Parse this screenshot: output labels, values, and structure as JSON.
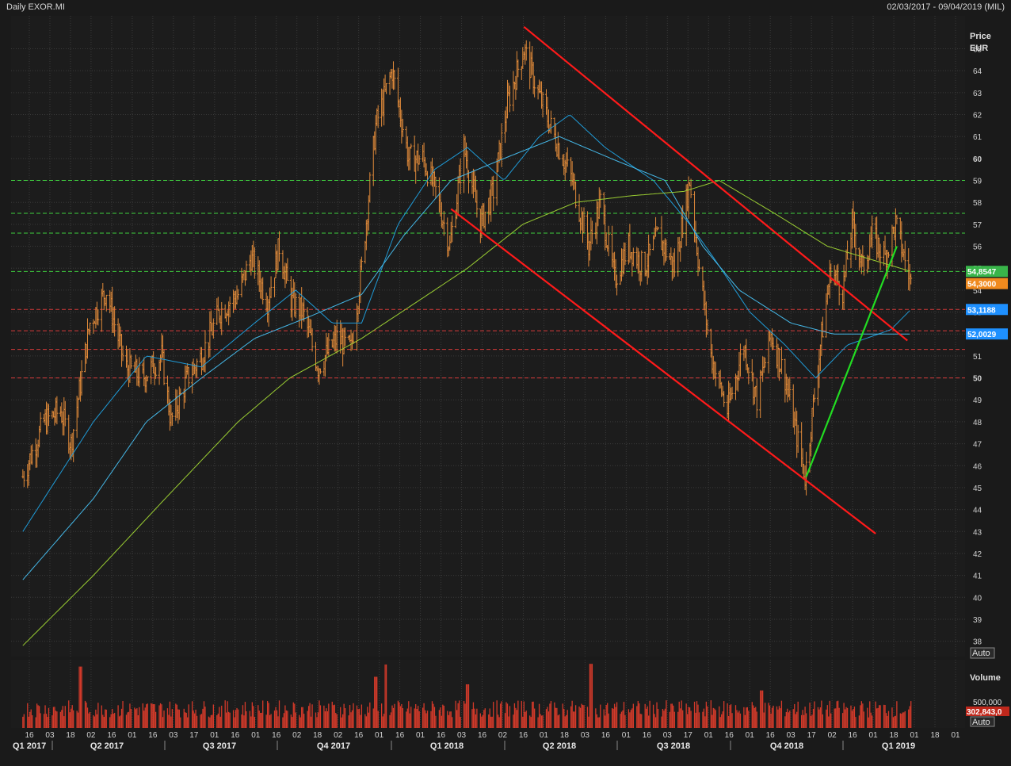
{
  "header": {
    "instrument": "Daily EXOR.MI",
    "date_range": "02/03/2017 - 09/04/2019 (MIL)"
  },
  "colors": {
    "background": "#1c1c1c",
    "grid": "#3a3a3a",
    "candles": "#e08a3a",
    "ma_short": "#1f9ad6",
    "ma_mid": "#45b8e8",
    "ma_long": "#9acd32",
    "trend_lines": "#ff1a1a",
    "uptrend": "#22dd22",
    "resistance": "#3ecf3e",
    "support": "#d63a3a",
    "volume": "#d43a2a",
    "text": "#d0d0d0"
  },
  "chart_data": {
    "type": "candlestick",
    "title": "Daily EXOR.MI",
    "ylabel": "Price EUR",
    "ylim": [
      37.3,
      66.5
    ],
    "y_ticks": [
      38,
      39,
      40,
      41,
      42,
      43,
      44,
      45,
      46,
      47,
      48,
      49,
      50,
      51,
      52,
      53,
      54,
      55,
      56,
      57,
      58,
      59,
      60,
      61,
      62,
      63,
      64,
      65
    ],
    "bold_ticks": [
      50,
      60
    ],
    "x_day_ticks": [
      "16",
      "03",
      "18",
      "02",
      "16",
      "01",
      "16",
      "03",
      "17",
      "01",
      "16",
      "01",
      "16",
      "02",
      "18",
      "02",
      "16",
      "01",
      "16",
      "01",
      "16",
      "03",
      "16",
      "02",
      "16",
      "01",
      "18",
      "03",
      "16",
      "01",
      "16",
      "03",
      "17",
      "01",
      "16",
      "01",
      "16",
      "03",
      "17",
      "02",
      "16",
      "01",
      "18",
      "01",
      "18",
      "01"
    ],
    "x_quarter_labels": [
      "Q1 2017",
      "Q2 2017",
      "Q3 2017",
      "Q4 2017",
      "Q1 2018",
      "Q2 2018",
      "Q3 2018",
      "Q4 2018",
      "Q1 2019"
    ],
    "price_series": {
      "name": "EXOR.MI",
      "points": [
        [
          "2017-03-02",
          45.5
        ],
        [
          "2017-03-20",
          48.0
        ],
        [
          "2017-04-03",
          48.5
        ],
        [
          "2017-04-12",
          47.0
        ],
        [
          "2017-04-28",
          52.5
        ],
        [
          "2017-05-12",
          54.0
        ],
        [
          "2017-05-28",
          50.5
        ],
        [
          "2017-06-12",
          50.0
        ],
        [
          "2017-06-28",
          51.0
        ],
        [
          "2017-07-06",
          48.0
        ],
        [
          "2017-07-20",
          50.0
        ],
        [
          "2017-08-01",
          51.0
        ],
        [
          "2017-08-16",
          53.0
        ],
        [
          "2017-09-01",
          53.8
        ],
        [
          "2017-09-12",
          55.5
        ],
        [
          "2017-09-26",
          53.5
        ],
        [
          "2017-10-06",
          56.0
        ],
        [
          "2017-10-16",
          53.5
        ],
        [
          "2017-10-26",
          53.0
        ],
        [
          "2017-11-08",
          50.5
        ],
        [
          "2017-11-24",
          51.8
        ],
        [
          "2017-12-06",
          51.3
        ],
        [
          "2017-12-15",
          55.0
        ],
        [
          "2017-12-27",
          61.5
        ],
        [
          "2018-01-10",
          64.0
        ],
        [
          "2018-01-24",
          60.0
        ],
        [
          "2018-02-05",
          60.0
        ],
        [
          "2018-02-16",
          58.5
        ],
        [
          "2018-02-28",
          56.0
        ],
        [
          "2018-03-12",
          60.5
        ],
        [
          "2018-03-26",
          57.0
        ],
        [
          "2018-04-06",
          58.5
        ],
        [
          "2018-04-18",
          62.5
        ],
        [
          "2018-05-02",
          65.0
        ],
        [
          "2018-05-14",
          63.0
        ],
        [
          "2018-05-28",
          61.0
        ],
        [
          "2018-06-12",
          59.0
        ],
        [
          "2018-06-26",
          56.0
        ],
        [
          "2018-07-06",
          58.0
        ],
        [
          "2018-07-18",
          54.5
        ],
        [
          "2018-07-30",
          56.0
        ],
        [
          "2018-08-12",
          55.0
        ],
        [
          "2018-08-24",
          56.5
        ],
        [
          "2018-09-07",
          55.0
        ],
        [
          "2018-09-20",
          59.0
        ],
        [
          "2018-09-28",
          55.0
        ],
        [
          "2018-10-08",
          51.0
        ],
        [
          "2018-10-22",
          48.5
        ],
        [
          "2018-11-05",
          51.5
        ],
        [
          "2018-11-16",
          49.0
        ],
        [
          "2018-11-28",
          52.0
        ],
        [
          "2018-12-10",
          50.0
        ],
        [
          "2018-12-27",
          45.5
        ],
        [
          "2019-01-09",
          51.5
        ],
        [
          "2019-01-18",
          55.0
        ],
        [
          "2019-01-28",
          54.0
        ],
        [
          "2019-02-05",
          57.0
        ],
        [
          "2019-02-14",
          55.0
        ],
        [
          "2019-02-22",
          56.5
        ],
        [
          "2019-03-05",
          55.5
        ],
        [
          "2019-03-14",
          57.0
        ],
        [
          "2019-03-27",
          54.3
        ]
      ]
    },
    "moving_averages": [
      {
        "points": [
          [
            "2017-03-02",
            43.0
          ],
          [
            "2017-05-01",
            48.0
          ],
          [
            "2017-06-15",
            51.0
          ],
          [
            "2017-08-01",
            50.5
          ],
          [
            "2017-09-15",
            52.5
          ],
          [
            "2017-10-20",
            54.0
          ],
          [
            "2017-11-20",
            52.5
          ],
          [
            "2017-12-15",
            52.5
          ],
          [
            "2018-01-15",
            57.0
          ],
          [
            "2018-02-15",
            59.5
          ],
          [
            "2018-03-15",
            60.5
          ],
          [
            "2018-04-15",
            59.0
          ],
          [
            "2018-05-15",
            61.0
          ],
          [
            "2018-06-10",
            62.0
          ],
          [
            "2018-07-10",
            60.5
          ],
          [
            "2018-08-20",
            59.0
          ],
          [
            "2018-09-20",
            57.0
          ],
          [
            "2018-10-10",
            55.5
          ],
          [
            "2018-11-10",
            53.0
          ],
          [
            "2018-12-10",
            51.5
          ],
          [
            "2019-01-05",
            50.0
          ],
          [
            "2019-02-01",
            51.5
          ],
          [
            "2019-03-10",
            52.2
          ],
          [
            "2019-03-27",
            53.12
          ]
        ]
      },
      {
        "points": [
          [
            "2017-03-02",
            40.8
          ],
          [
            "2017-05-01",
            44.5
          ],
          [
            "2017-06-15",
            48.0
          ],
          [
            "2017-08-01",
            50.0
          ],
          [
            "2017-09-15",
            51.8
          ],
          [
            "2017-11-01",
            52.8
          ],
          [
            "2017-12-15",
            53.8
          ],
          [
            "2018-01-20",
            56.5
          ],
          [
            "2018-03-01",
            59.0
          ],
          [
            "2018-04-15",
            60.0
          ],
          [
            "2018-06-01",
            61.0
          ],
          [
            "2018-07-15",
            60.0
          ],
          [
            "2018-08-30",
            59.0
          ],
          [
            "2018-10-01",
            56.0
          ],
          [
            "2018-11-01",
            54.0
          ],
          [
            "2018-12-15",
            52.5
          ],
          [
            "2019-01-20",
            52.0
          ],
          [
            "2019-03-27",
            52.0
          ]
        ]
      },
      {
        "points": [
          [
            "2017-03-02",
            37.8
          ],
          [
            "2017-05-01",
            41.0
          ],
          [
            "2017-07-01",
            44.5
          ],
          [
            "2017-09-01",
            48.0
          ],
          [
            "2017-10-15",
            50.0
          ],
          [
            "2017-12-15",
            51.8
          ],
          [
            "2018-02-01",
            53.5
          ],
          [
            "2018-03-15",
            55.0
          ],
          [
            "2018-05-01",
            57.0
          ],
          [
            "2018-06-15",
            58.0
          ],
          [
            "2018-08-01",
            58.3
          ],
          [
            "2018-09-15",
            58.5
          ],
          [
            "2018-10-15",
            59.0
          ],
          [
            "2018-12-01",
            57.5
          ],
          [
            "2019-01-15",
            56.0
          ],
          [
            "2019-03-27",
            54.85
          ]
        ]
      }
    ],
    "trend_lines": [
      {
        "from": [
          "2018-05-02",
          66.0
        ],
        "to": [
          "2019-03-24",
          51.7
        ],
        "color": "red"
      },
      {
        "from": [
          "2018-03-01",
          57.7
        ],
        "to": [
          "2019-02-25",
          42.9
        ],
        "color": "red"
      },
      {
        "from": [
          "2018-12-28",
          45.5
        ],
        "to": [
          "2019-03-15",
          56.0
        ],
        "color": "green"
      }
    ],
    "horizontal_levels": [
      {
        "value": 59.0,
        "kind": "resistance"
      },
      {
        "value": 57.5,
        "kind": "resistance"
      },
      {
        "value": 56.6,
        "kind": "resistance"
      },
      {
        "value": 54.85,
        "kind": "resistance"
      },
      {
        "value": 53.12,
        "kind": "support"
      },
      {
        "value": 52.15,
        "kind": "support"
      },
      {
        "value": 51.3,
        "kind": "support"
      },
      {
        "value": 50.0,
        "kind": "support"
      }
    ],
    "price_tags": [
      {
        "label": "54,8547",
        "value": 54.8547,
        "color": "#39b54a"
      },
      {
        "label": "54,3000",
        "value": 54.3,
        "color": "#f08a1e"
      },
      {
        "label": "53,1188",
        "value": 53.1188,
        "color": "#1e90ff"
      },
      {
        "label": "52,0029",
        "value": 52.0029,
        "color": "#1e90ff"
      }
    ],
    "volume": {
      "label": "Volume",
      "tick_label": "500,000",
      "ylim": [
        0,
        1000000
      ],
      "last_value_label": "302,843,0",
      "typical": 280000,
      "spikes": [
        [
          "2017-04-20",
          900000
        ],
        [
          "2017-12-27",
          750000
        ],
        [
          "2018-01-05",
          930000
        ],
        [
          "2018-06-28",
          940000
        ],
        [
          "2018-03-15",
          640000
        ],
        [
          "2018-11-20",
          550000
        ]
      ]
    },
    "autoscale_label": "Auto"
  }
}
